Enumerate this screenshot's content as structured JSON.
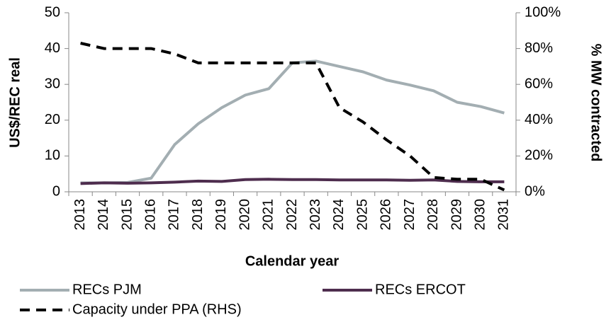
{
  "chart_data": {
    "type": "line",
    "x_label": "Calendar year",
    "y_label": "US$/REC real",
    "y2_label": "% MW contracted",
    "categories": [
      "2013",
      "2014",
      "2015",
      "2016",
      "2017",
      "2018",
      "2019",
      "2020",
      "2021",
      "2022",
      "2023",
      "2024",
      "2025",
      "2026",
      "2027",
      "2028",
      "2029",
      "2030",
      "2031"
    ],
    "series": [
      {
        "name": "RECs PJM",
        "color": "#a3aeb2",
        "dash": false,
        "values": [
          2.5,
          2.5,
          2.6,
          3.8,
          13.2,
          19,
          23.5,
          27,
          28.8,
          36,
          36.5,
          35,
          33.5,
          31.2,
          29.8,
          28.2,
          25,
          23.8,
          22
        ]
      },
      {
        "name": "RECs ERCOT",
        "color": "#4e2d4e",
        "dash": false,
        "values": [
          2.3,
          2.5,
          2.4,
          2.5,
          2.7,
          3,
          2.9,
          3.4,
          3.5,
          3.4,
          3.4,
          3.3,
          3.3,
          3.3,
          3.2,
          3.3,
          2.9,
          2.8,
          2.8
        ]
      },
      {
        "name": "Capacity under PPA (RHS)",
        "color": "#000000",
        "dash": true,
        "axis": "y2",
        "values": [
          83,
          80,
          80,
          80,
          77,
          72,
          72,
          72,
          72,
          72,
          72,
          47,
          39,
          29,
          20,
          8,
          7,
          7,
          1
        ]
      }
    ],
    "ylim": [
      0,
      50
    ],
    "yticks": [
      0,
      10,
      20,
      30,
      40,
      50
    ],
    "y2lim": [
      0,
      100
    ],
    "y2ticks": [
      {
        "value": 0,
        "label": "0%"
      },
      {
        "value": 20,
        "label": "20%"
      },
      {
        "value": 40,
        "label": "40%"
      },
      {
        "value": 60,
        "label": "60%"
      },
      {
        "value": 80,
        "label": "80%"
      },
      {
        "value": 100,
        "label": "100%"
      }
    ],
    "grid": false,
    "legend": "bottom"
  }
}
